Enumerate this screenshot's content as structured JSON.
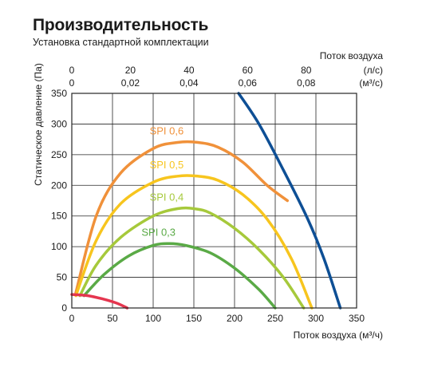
{
  "page": {
    "title": "Производительность",
    "subtitle": "Установка стандартной комплектации"
  },
  "chart_data": {
    "type": "line",
    "xlabel": "Поток воздуха (м³/ч)",
    "ylabel": "Статическое давление (Па)",
    "top_axis_title": "Поток воздуха",
    "xlim": [
      0,
      350
    ],
    "ylim": [
      0,
      350
    ],
    "x_ticks": [
      0,
      50,
      100,
      150,
      200,
      250,
      300,
      350
    ],
    "y_ticks": [
      0,
      50,
      100,
      150,
      200,
      250,
      300,
      350
    ],
    "top_axis_ls": {
      "unit": "(л/с)",
      "ticks": [
        "0",
        "20",
        "40",
        "60",
        "80"
      ],
      "values": [
        0,
        20,
        40,
        60,
        80
      ]
    },
    "top_axis_m3s": {
      "unit": "(м³/с)",
      "ticks": [
        "0",
        "0,02",
        "0,04",
        "0,06",
        "0,08"
      ],
      "values": [
        0,
        0.02,
        0.04,
        0.06,
        0.08
      ]
    },
    "grid": true,
    "series": [
      {
        "name": "SPI 0,6",
        "color": "#f0913a",
        "x": [
          5,
          30,
          60,
          100,
          130,
          155,
          180,
          210,
          240,
          265
        ],
        "y": [
          25,
          150,
          220,
          260,
          270,
          270,
          262,
          238,
          200,
          175
        ]
      },
      {
        "name": "SPI 0,5",
        "color": "#f7c51e",
        "x": [
          5,
          30,
          60,
          100,
          130,
          155,
          180,
          210,
          240,
          270,
          295
        ],
        "y": [
          20,
          110,
          170,
          205,
          215,
          215,
          208,
          185,
          145,
          80,
          0
        ]
      },
      {
        "name": "SPI 0,4",
        "color": "#a6c93b",
        "x": [
          10,
          30,
          60,
          100,
          130,
          150,
          170,
          200,
          230,
          260,
          285
        ],
        "y": [
          20,
          70,
          115,
          150,
          162,
          162,
          155,
          130,
          95,
          50,
          0
        ]
      },
      {
        "name": "SPI 0,3",
        "color": "#5aaa46",
        "x": [
          15,
          40,
          70,
          100,
          120,
          140,
          170,
          200,
          230,
          250
        ],
        "y": [
          20,
          55,
          85,
          102,
          105,
          102,
          90,
          65,
          30,
          0
        ]
      },
      {
        "name": "",
        "color": "#0e4f95",
        "x": [
          205,
          230,
          260,
          290,
          310,
          330
        ],
        "y": [
          350,
          300,
          225,
          145,
          80,
          0
        ]
      },
      {
        "name": "",
        "color": "#e5364f",
        "x": [
          0,
          20,
          40,
          55,
          68
        ],
        "y": [
          22,
          20,
          14,
          8,
          0
        ]
      }
    ]
  }
}
